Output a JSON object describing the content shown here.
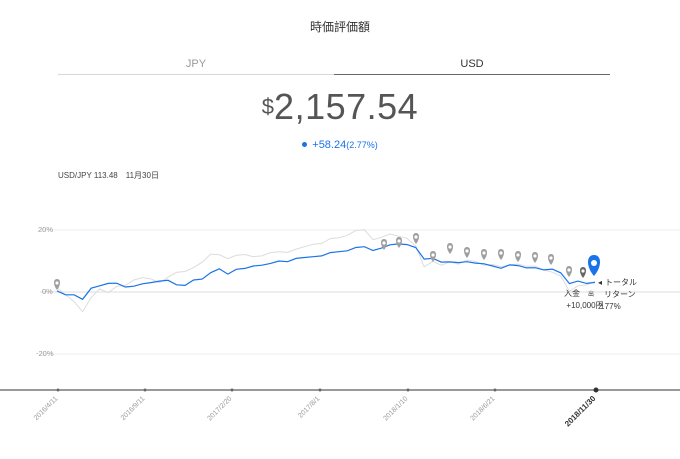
{
  "header": {
    "title": "時価評価額"
  },
  "tabs": [
    {
      "label": "JPY",
      "active": false
    },
    {
      "label": "USD",
      "active": true
    }
  ],
  "valuation": {
    "currency_symbol": "$",
    "amount": "2,157.54",
    "change": "+58.24",
    "change_pct": "(2.77%)"
  },
  "fx": {
    "rate_text": "USD/JPY 113.48",
    "date_text": "11月30日"
  },
  "chart_data": {
    "type": "line",
    "y_tick_labels": [
      "20%",
      "0%",
      "-20%"
    ],
    "ylim": [
      -30,
      30
    ],
    "x_tick_labels": [
      "2016/4/11",
      "2016/9/11",
      "2017/2/20",
      "2017/8/1",
      "2018/1/10",
      "2018/6/21",
      "2018/11/30"
    ],
    "selected_x_label": "2018/11/30",
    "series": [
      {
        "color": "#1a73e8",
        "values": [
          0.0,
          -1.0,
          -0.8,
          -2.0,
          1.0,
          2.0,
          3.0,
          2.5,
          1.5,
          2.0,
          3.0,
          2.8,
          3.5,
          4.0,
          2.0,
          2.0,
          4.0,
          4.5,
          6.0,
          7.5,
          6.0,
          7.0,
          7.5,
          8.5,
          9.0,
          9.0,
          10.0,
          10.0,
          10.5,
          11.0,
          11.5,
          12.0,
          12.5,
          13.0,
          13.5,
          14.0,
          14.5,
          13.5,
          14.5,
          15.0,
          15.5,
          15.5,
          14.0,
          10.5,
          11.0,
          10.0,
          9.5,
          9.5,
          10.0,
          9.0,
          9.0,
          8.5,
          8.0,
          8.5,
          8.5,
          8.0,
          7.5,
          7.0,
          7.5,
          6.5,
          2.5,
          3.5,
          3.0,
          2.77
        ]
      },
      {
        "color": "#d9d9d9",
        "values": [
          1.0,
          -1.0,
          -3.0,
          -6.0,
          -2.0,
          1.0,
          0.0,
          1.5,
          2.0,
          4.0,
          5.0,
          4.0,
          3.0,
          5.0,
          6.0,
          6.5,
          8.0,
          10.0,
          12.0,
          12.0,
          11.0,
          11.5,
          12.0,
          11.5,
          12.0,
          12.5,
          13.0,
          13.0,
          13.5,
          14.5,
          15.5,
          16.0,
          17.0,
          17.5,
          18.5,
          19.5,
          20.0,
          17.0,
          18.0,
          18.5,
          18.0,
          17.5,
          14.5,
          8.0,
          10.0,
          9.0,
          9.5,
          9.0,
          10.5,
          9.5,
          8.5,
          9.0,
          8.5,
          8.5,
          9.0,
          8.5,
          8.0,
          7.0,
          6.5,
          5.5,
          0.0,
          2.0,
          2.5,
          3.0
        ]
      }
    ]
  },
  "annotations": {
    "deposit_label": "入金",
    "deposit_sub": "出",
    "deposit_amount": "+10,000円",
    "total_label": "トータル",
    "return_label": "リターン",
    "return_pct": "2.77%"
  },
  "colors": {
    "accent": "#1a73e8",
    "gray_marker": "#9e9e9e",
    "dark_marker": "#666666"
  }
}
